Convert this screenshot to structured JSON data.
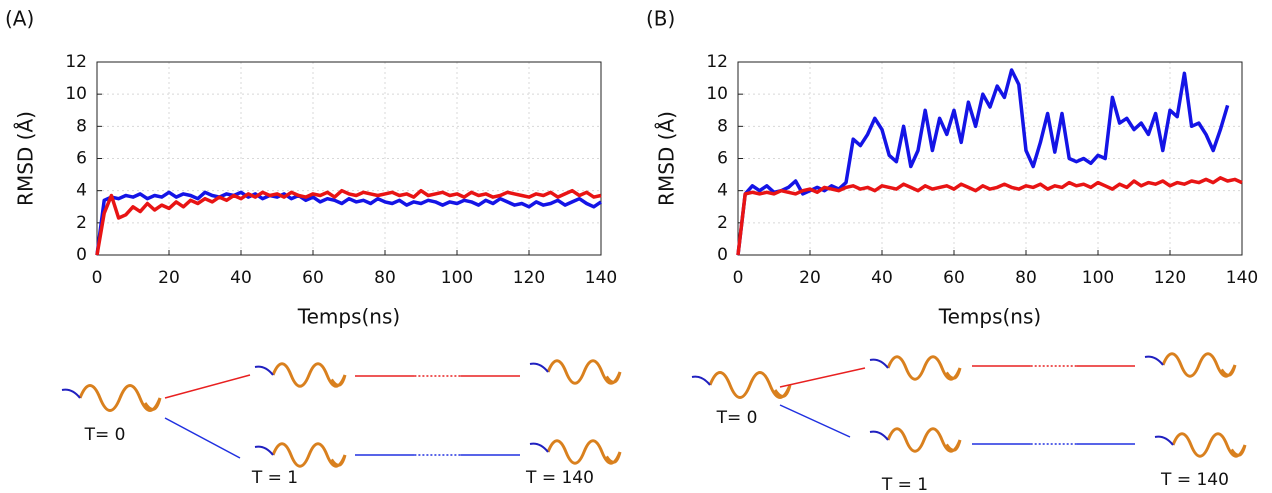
{
  "chart_data": [
    {
      "type": "line",
      "panel": "(A)",
      "xlabel": "Temps(ns)",
      "ylabel": "RMSD (Å)",
      "x": [
        0,
        2,
        4,
        6,
        8,
        10,
        12,
        14,
        16,
        18,
        20,
        22,
        24,
        26,
        28,
        30,
        32,
        34,
        36,
        38,
        40,
        42,
        44,
        46,
        48,
        50,
        52,
        54,
        56,
        58,
        60,
        62,
        64,
        66,
        68,
        70,
        72,
        74,
        76,
        78,
        80,
        82,
        84,
        86,
        88,
        90,
        92,
        94,
        96,
        98,
        100,
        102,
        104,
        106,
        108,
        110,
        112,
        114,
        116,
        118,
        120,
        122,
        124,
        126,
        128,
        130,
        132,
        134,
        136,
        138,
        140
      ],
      "series": [
        {
          "color": "#1414e6",
          "values": [
            0,
            3.4,
            3.6,
            3.5,
            3.7,
            3.6,
            3.8,
            3.5,
            3.7,
            3.6,
            3.9,
            3.6,
            3.8,
            3.7,
            3.5,
            3.9,
            3.7,
            3.6,
            3.8,
            3.7,
            3.9,
            3.6,
            3.8,
            3.5,
            3.7,
            3.6,
            3.8,
            3.5,
            3.7,
            3.4,
            3.6,
            3.3,
            3.5,
            3.4,
            3.2,
            3.5,
            3.3,
            3.4,
            3.2,
            3.5,
            3.3,
            3.2,
            3.4,
            3.1,
            3.3,
            3.2,
            3.4,
            3.3,
            3.1,
            3.3,
            3.2,
            3.4,
            3.3,
            3.1,
            3.4,
            3.2,
            3.5,
            3.3,
            3.1,
            3.2,
            3.0,
            3.3,
            3.1,
            3.2,
            3.4,
            3.1,
            3.3,
            3.5,
            3.2,
            3.0,
            3.3
          ]
        },
        {
          "color": "#e81414",
          "values": [
            0,
            2.6,
            3.7,
            2.3,
            2.5,
            3.0,
            2.7,
            3.2,
            2.8,
            3.1,
            2.9,
            3.3,
            3.0,
            3.4,
            3.2,
            3.5,
            3.3,
            3.6,
            3.4,
            3.7,
            3.5,
            3.8,
            3.6,
            3.9,
            3.7,
            3.8,
            3.6,
            3.9,
            3.7,
            3.6,
            3.8,
            3.7,
            3.9,
            3.6,
            4.0,
            3.8,
            3.7,
            3.9,
            3.8,
            3.7,
            3.8,
            3.9,
            3.7,
            3.8,
            3.6,
            4.0,
            3.7,
            3.8,
            3.9,
            3.7,
            3.8,
            3.6,
            3.9,
            3.7,
            3.8,
            3.6,
            3.7,
            3.9,
            3.8,
            3.7,
            3.6,
            3.8,
            3.7,
            3.9,
            3.6,
            3.8,
            4.0,
            3.7,
            3.9,
            3.6,
            3.7
          ]
        }
      ],
      "xlim": [
        0,
        140
      ],
      "ylim": [
        0,
        12
      ],
      "xticks": [
        0,
        20,
        40,
        60,
        80,
        100,
        120,
        140
      ],
      "yticks": [
        0,
        2,
        4,
        6,
        8,
        10,
        12
      ],
      "grid": true
    },
    {
      "type": "line",
      "panel": "(B)",
      "xlabel": "Temps(ns)",
      "ylabel": "RMSD (Å)",
      "x": [
        0,
        2,
        4,
        6,
        8,
        10,
        12,
        14,
        16,
        18,
        20,
        22,
        24,
        26,
        28,
        30,
        32,
        34,
        36,
        38,
        40,
        42,
        44,
        46,
        48,
        50,
        52,
        54,
        56,
        58,
        60,
        62,
        64,
        66,
        68,
        70,
        72,
        74,
        76,
        78,
        80,
        82,
        84,
        86,
        88,
        90,
        92,
        94,
        96,
        98,
        100,
        102,
        104,
        106,
        108,
        110,
        112,
        114,
        116,
        118,
        120,
        122,
        124,
        126,
        128,
        130,
        132,
        134,
        136,
        138,
        140
      ],
      "series": [
        {
          "color": "#1414e6",
          "values": [
            0,
            3.8,
            4.3,
            4.0,
            4.3,
            3.9,
            4.0,
            4.2,
            4.6,
            3.8,
            4.0,
            4.2,
            4.0,
            4.3,
            4.1,
            4.5,
            7.2,
            6.8,
            7.5,
            8.5,
            7.8,
            6.2,
            5.8,
            8.0,
            5.5,
            6.5,
            9.0,
            6.5,
            8.5,
            7.5,
            9.0,
            7.0,
            9.5,
            8.0,
            10.0,
            9.2,
            10.5,
            9.8,
            11.5,
            10.6,
            6.5,
            5.5,
            7.0,
            8.8,
            6.4,
            8.8,
            6.0,
            5.8,
            6.0,
            5.7,
            6.2,
            6.0,
            9.8,
            8.2,
            8.5,
            7.8,
            8.2,
            7.5,
            8.8,
            6.5,
            9.0,
            8.6,
            11.3,
            8.0,
            8.2,
            7.5,
            6.5,
            7.8,
            9.3,
            null,
            null
          ]
        },
        {
          "color": "#e81414",
          "values": [
            0,
            3.8,
            3.9,
            3.8,
            3.9,
            3.8,
            4.0,
            3.9,
            3.8,
            4.0,
            4.1,
            3.9,
            4.2,
            4.1,
            4.0,
            4.2,
            4.3,
            4.1,
            4.2,
            4.0,
            4.3,
            4.2,
            4.1,
            4.4,
            4.2,
            4.0,
            4.3,
            4.1,
            4.2,
            4.3,
            4.1,
            4.4,
            4.2,
            4.0,
            4.3,
            4.1,
            4.2,
            4.4,
            4.2,
            4.1,
            4.3,
            4.2,
            4.4,
            4.1,
            4.3,
            4.2,
            4.5,
            4.3,
            4.4,
            4.2,
            4.5,
            4.3,
            4.1,
            4.4,
            4.2,
            4.6,
            4.3,
            4.5,
            4.4,
            4.6,
            4.3,
            4.5,
            4.4,
            4.6,
            4.5,
            4.7,
            4.5,
            4.8,
            4.6,
            4.7,
            4.5
          ]
        }
      ],
      "xlim": [
        0,
        140
      ],
      "ylim": [
        0,
        12
      ],
      "xticks": [
        0,
        20,
        40,
        60,
        80,
        100,
        120,
        140
      ],
      "yticks": [
        0,
        2,
        4,
        6,
        8,
        10,
        12
      ],
      "grid": true
    }
  ],
  "illustrations": [
    {
      "t0": "T= 0",
      "t1": "T = 1",
      "t140": "T = 140"
    },
    {
      "t0": "T= 0",
      "t1": "T = 1",
      "t140": "T = 140"
    }
  ]
}
